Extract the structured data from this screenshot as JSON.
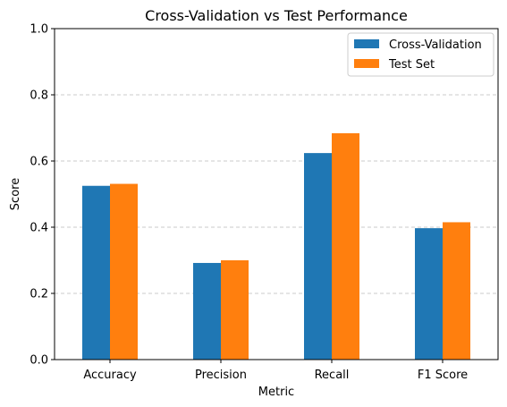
{
  "chart_data": {
    "type": "bar",
    "title": "Cross-Validation vs Test Performance",
    "xlabel": "Metric",
    "ylabel": "Score",
    "ylim": [
      0,
      1.0
    ],
    "yticks": [
      "0.0",
      "0.2",
      "0.4",
      "0.6",
      "0.8",
      "1.0"
    ],
    "ytick_values": [
      0,
      0.2,
      0.4,
      0.6,
      0.8,
      1.0
    ],
    "grid": "y-dashed",
    "legend_position": "top-right",
    "categories": [
      "Accuracy",
      "Precision",
      "Recall",
      "F1 Score"
    ],
    "series": [
      {
        "name": "Cross-Validation",
        "color": "#1f77b4",
        "values": [
          0.525,
          0.292,
          0.624,
          0.397
        ]
      },
      {
        "name": "Test Set",
        "color": "#ff7f0e",
        "values": [
          0.531,
          0.3,
          0.684,
          0.415
        ]
      }
    ]
  }
}
